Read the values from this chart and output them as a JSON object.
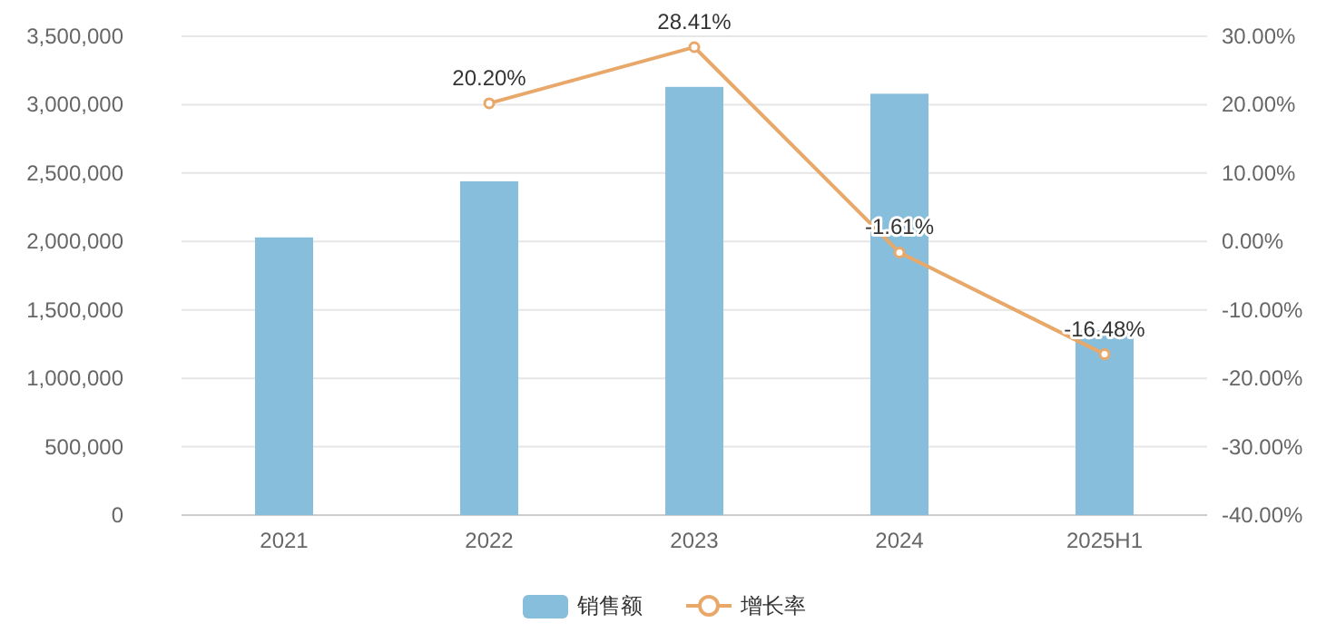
{
  "chart_data": {
    "type": "bar",
    "categories": [
      "2021",
      "2022",
      "2023",
      "2024",
      "2025H1"
    ],
    "series": [
      {
        "name": "销售额",
        "color": "#86bedc",
        "values": [
          2030000,
          2440000,
          3130000,
          3080000,
          1350000
        ]
      },
      {
        "name": "增长率",
        "type": "line",
        "axis": "y2",
        "color": "#e8a86a",
        "values": [
          null,
          20.2,
          28.41,
          -1.61,
          -16.48
        ],
        "value_labels": [
          null,
          "20.20%",
          "28.41%",
          "-1.61%",
          "-16.48%"
        ]
      }
    ],
    "ylim": [
      0,
      3500000
    ],
    "yticks": [
      {
        "value": 0,
        "label": "0"
      },
      {
        "value": 500000,
        "label": "500,000"
      },
      {
        "value": 1000000,
        "label": "1,000,000"
      },
      {
        "value": 1500000,
        "label": "1,500,000"
      },
      {
        "value": 2000000,
        "label": "2,000,000"
      },
      {
        "value": 2500000,
        "label": "2,500,000"
      },
      {
        "value": 3000000,
        "label": "3,000,000"
      },
      {
        "value": 3500000,
        "label": "3,500,000"
      }
    ],
    "y2lim": [
      -40,
      30
    ],
    "y2ticks": [
      {
        "value": -40,
        "label": "-40.00%"
      },
      {
        "value": -30,
        "label": "-30.00%"
      },
      {
        "value": -20,
        "label": "-20.00%"
      },
      {
        "value": -10,
        "label": "-10.00%"
      },
      {
        "value": 0,
        "label": "0.00%"
      },
      {
        "value": 10,
        "label": "10.00%"
      },
      {
        "value": 20,
        "label": "20.00%"
      },
      {
        "value": 30,
        "label": "30.00%"
      }
    ],
    "grid": "y",
    "legend": "bottom",
    "marker": "circle"
  }
}
